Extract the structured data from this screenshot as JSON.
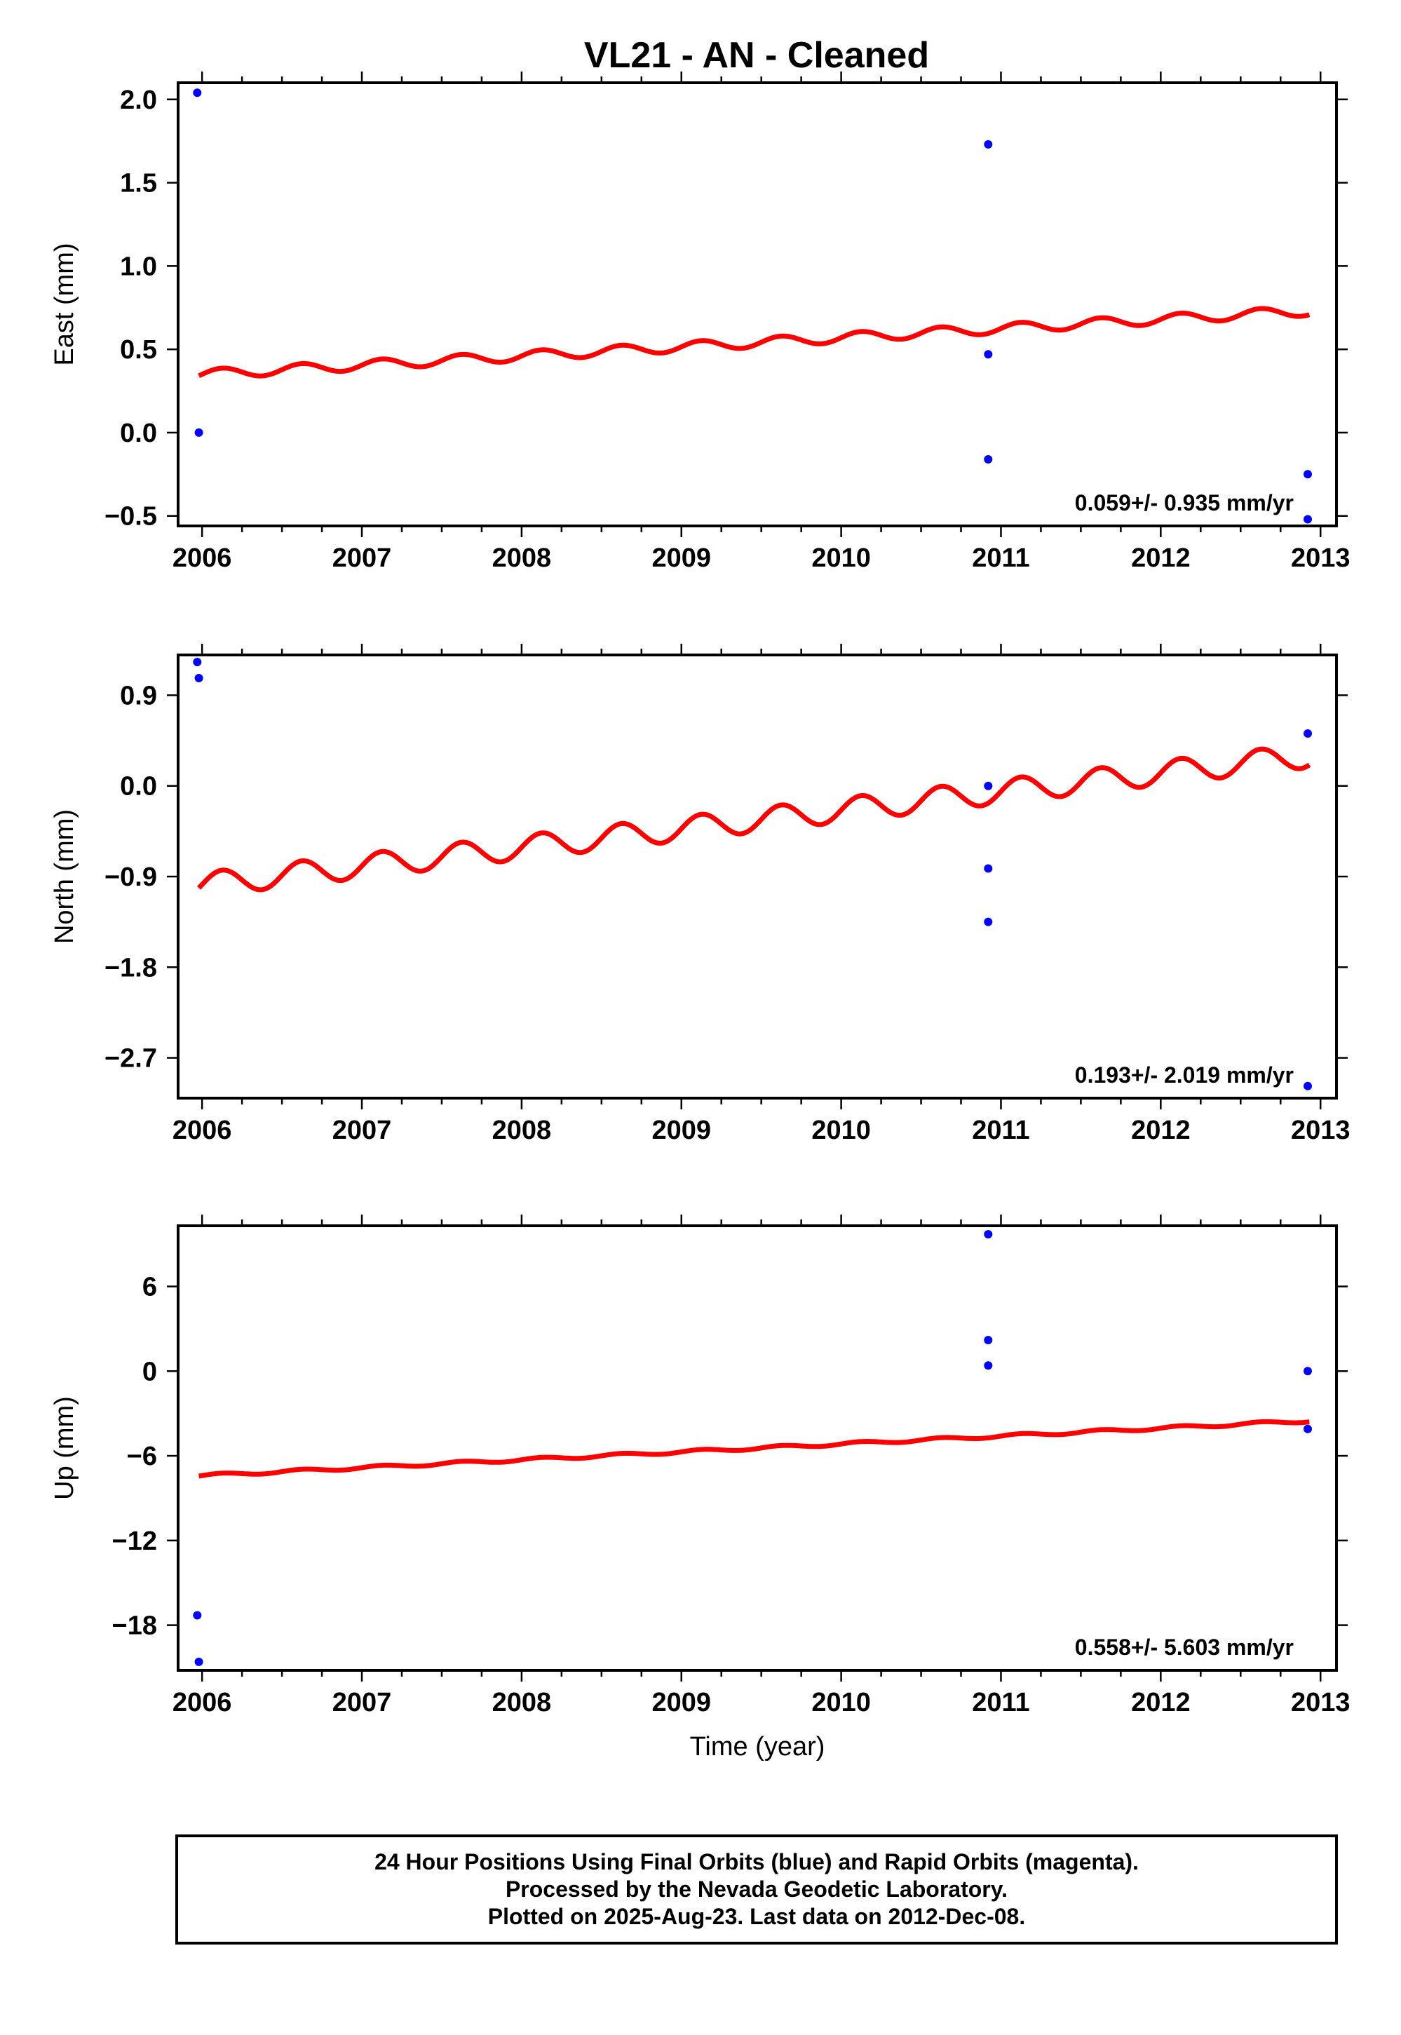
{
  "title": "VL21  - AN - Cleaned",
  "chart_data": [
    {
      "type": "scatter",
      "ylabel": "East (mm)",
      "xlabel": "",
      "xlim": [
        2005.85,
        2013.1
      ],
      "ylim": [
        -0.56,
        2.1
      ],
      "xticks": [
        2006,
        2007,
        2008,
        2009,
        2010,
        2011,
        2012,
        2013
      ],
      "yticks": [
        -0.5,
        0.0,
        0.5,
        1.0,
        1.5,
        2.0
      ],
      "ytick_labels": [
        "−0.5",
        "0.0",
        "0.5",
        "1.0",
        "1.5",
        "2.0"
      ],
      "rate_label": "0.059+/- 0.935 mm/yr",
      "points": [
        [
          2005.97,
          2.04
        ],
        [
          2005.98,
          0.0
        ],
        [
          2010.92,
          1.73
        ],
        [
          2010.92,
          0.47
        ],
        [
          2010.92,
          -0.16
        ],
        [
          2012.92,
          -0.25
        ],
        [
          2012.92,
          -0.52
        ]
      ],
      "model": {
        "t0": 2006.0,
        "y0": 0.35,
        "rate": 0.055,
        "amplitude": 0.03,
        "period": 0.5,
        "t_start": 2005.98,
        "t_end": 2012.93,
        "color": "#ff0000"
      },
      "point_color": "#0000ff"
    },
    {
      "type": "scatter",
      "ylabel": "North (mm)",
      "xlabel": "",
      "xlim": [
        2005.85,
        2013.1
      ],
      "ylim": [
        -3.1,
        1.3
      ],
      "xticks": [
        2006,
        2007,
        2008,
        2009,
        2010,
        2011,
        2012,
        2013
      ],
      "yticks": [
        -2.7,
        -1.8,
        -0.9,
        0.0,
        0.9
      ],
      "ytick_labels": [
        "−2.7",
        "−1.8",
        "−0.9",
        "0.0",
        "0.9"
      ],
      "rate_label": "0.193+/- 2.019 mm/yr",
      "points": [
        [
          2005.97,
          1.23
        ],
        [
          2005.98,
          1.07
        ],
        [
          2010.92,
          0.0
        ],
        [
          2010.92,
          -0.82
        ],
        [
          2010.92,
          -1.35
        ],
        [
          2012.92,
          0.52
        ],
        [
          2012.92,
          -2.98
        ]
      ],
      "model": {
        "t0": 2006.0,
        "y0": -0.98,
        "rate": 0.185,
        "amplitude": 0.12,
        "period": 0.5,
        "t_start": 2005.98,
        "t_end": 2012.93,
        "color": "#ff0000"
      },
      "point_color": "#0000ff"
    },
    {
      "type": "scatter",
      "ylabel": "Up (mm)",
      "xlabel": "Time (year)",
      "xlim": [
        2005.85,
        2013.1
      ],
      "ylim": [
        -21.2,
        10.3
      ],
      "xticks": [
        2006,
        2007,
        2008,
        2009,
        2010,
        2011,
        2012,
        2013
      ],
      "yticks": [
        -18,
        -12,
        -6,
        0,
        6
      ],
      "ytick_labels": [
        "−18",
        "−12",
        "−6",
        "0",
        "6"
      ],
      "rate_label": "0.558+/- 5.603 mm/yr",
      "points": [
        [
          2010.92,
          9.7
        ],
        [
          2010.92,
          2.2
        ],
        [
          2010.92,
          0.4
        ],
        [
          2012.92,
          0.0
        ],
        [
          2012.92,
          -4.1
        ],
        [
          2005.97,
          -17.3
        ],
        [
          2005.98,
          -20.6
        ]
      ],
      "model": {
        "t0": 2006.0,
        "y0": -7.4,
        "rate": 0.56,
        "amplitude": 0.1,
        "period": 0.5,
        "t_start": 2005.98,
        "t_end": 2012.93,
        "color": "#ff0000"
      },
      "point_color": "#0000ff"
    }
  ],
  "caption": {
    "line1": "24 Hour Positions Using Final Orbits (blue) and Rapid Orbits (magenta).",
    "line2": "Processed by the Nevada Geodetic Laboratory.",
    "line3": "Plotted on 2025-Aug-23. Last data on 2012-Dec-08."
  }
}
